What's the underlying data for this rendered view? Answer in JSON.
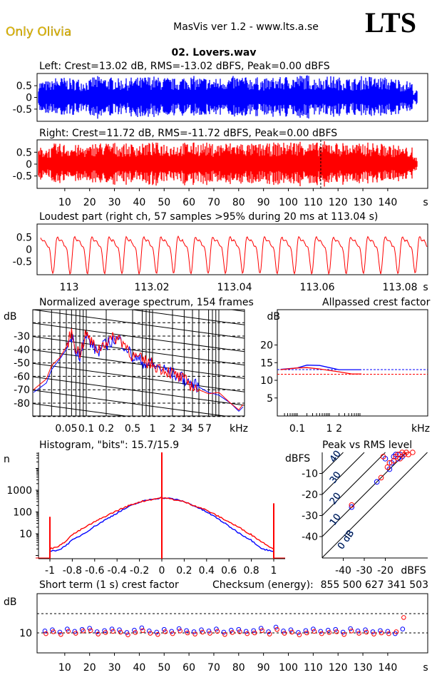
{
  "header": {
    "artist": "Only Olivia",
    "app": "MasVis ver 1.2 - www.lts.a.se",
    "logo": "LTS",
    "file": "02. Lovers.wav"
  },
  "colors": {
    "left": "#0000ff",
    "right": "#ff0000",
    "artist": "#e8c000"
  },
  "chart_data": [
    {
      "type": "line",
      "name": "left-waveform",
      "title": "Left: Crest=13.02 dB, RMS=-13.02 dBFS, Peak=0.00 dBFS",
      "ylim": [
        -1,
        1
      ],
      "yticks": [
        "0.5",
        "0",
        "-0.5"
      ],
      "xlim": [
        0,
        155
      ],
      "envelope": [
        0.7,
        0.85,
        0.8,
        0.75,
        0.9,
        0.85,
        0.8,
        0.85,
        0.9,
        0.85,
        0.8,
        0.9,
        0.85,
        0.8,
        0.85,
        0.9,
        0.85,
        0.8,
        0.85,
        0.9,
        0.95,
        0.85,
        0.9,
        0.85,
        0.8,
        0.9,
        0.85,
        0.8,
        0.7,
        0.3
      ]
    },
    {
      "type": "line",
      "name": "right-waveform",
      "title": "Right: Crest=11.72 dB, RMS=-11.72 dBFS, Peak=0.00 dBFS",
      "ylim": [
        -1,
        1
      ],
      "yticks": [
        "0.5",
        "0",
        "-0.5"
      ],
      "xlim": [
        0,
        155
      ],
      "marker_s": 113.04,
      "envelope": [
        0.7,
        0.85,
        0.8,
        0.75,
        0.9,
        0.9,
        0.85,
        0.85,
        0.9,
        0.9,
        0.85,
        0.9,
        0.9,
        0.85,
        0.9,
        0.9,
        0.85,
        0.85,
        0.9,
        0.95,
        1.0,
        0.9,
        0.95,
        0.9,
        0.85,
        0.9,
        0.85,
        0.8,
        0.7,
        0.3
      ],
      "xticks": [
        "10",
        "20",
        "30",
        "40",
        "50",
        "60",
        "70",
        "80",
        "90",
        "100",
        "110",
        "120",
        "130",
        "140"
      ],
      "xunit": "s"
    },
    {
      "type": "line",
      "name": "loudest-part",
      "title": "Loudest part (right ch, 57 samples >95% during 20 ms at 113.04 s)",
      "ylim": [
        -1,
        1
      ],
      "yticks": [
        "0.5",
        "0",
        "-0.5"
      ],
      "xticks": [
        "113",
        "113.02",
        "113.04",
        "113.06",
        "113.08"
      ],
      "xunit": "s"
    },
    {
      "type": "line",
      "name": "spectrum",
      "title": "Normalized average spectrum, 154 frames",
      "ylabel": "dB",
      "xunit": "kHz",
      "xscale": "log",
      "yticks": [
        "-30",
        "-40",
        "-50",
        "-60",
        "-70",
        "-80"
      ],
      "xticks": [
        "0.05",
        "0.1",
        "0.2",
        "0.5",
        "1",
        "2",
        "3",
        "4",
        "5",
        "7"
      ],
      "freq_khz": [
        0.016,
        0.025,
        0.03,
        0.04,
        0.05,
        0.06,
        0.065,
        0.07,
        0.08,
        0.1,
        0.12,
        0.15,
        0.2,
        0.25,
        0.3,
        0.4,
        0.5,
        0.7,
        1,
        1.5,
        2,
        3,
        4,
        5,
        7,
        10,
        15,
        20,
        24
      ],
      "series": [
        {
          "values": [
            -72,
            -65,
            -55,
            -47,
            -40,
            -30,
            -35,
            -40,
            -44,
            -30,
            -36,
            -42,
            -36,
            -33,
            -32,
            -38,
            -46,
            -49,
            -52,
            -55,
            -58,
            -62,
            -66,
            -68,
            -72,
            -74,
            -80,
            -86,
            -82
          ]
        },
        {
          "values": [
            -70,
            -62,
            -52,
            -46,
            -38,
            -27,
            -33,
            -39,
            -43,
            -28,
            -35,
            -40,
            -34,
            -32,
            -31,
            -37,
            -45,
            -48,
            -51,
            -55,
            -58,
            -63,
            -67,
            -70,
            -73,
            -72,
            -80,
            -85,
            -80
          ]
        }
      ]
    },
    {
      "type": "line",
      "name": "allpassed-crest",
      "title": "Allpassed crest factor",
      "ylabel": "dB",
      "xunit": "kHz",
      "xscale": "log",
      "yticks": [
        "20",
        "15",
        "10",
        "5"
      ],
      "xticks": [
        "0.1",
        "1",
        "2"
      ],
      "freq_khz": [
        0.03,
        0.1,
        0.2,
        0.5,
        1,
        2,
        5,
        10
      ],
      "series": [
        {
          "values": [
            13.1,
            13.5,
            14.3,
            14.2,
            13.6,
            13.0,
            13.0,
            13.0
          ],
          "reference": 13.02
        },
        {
          "values": [
            13.0,
            13.5,
            13.6,
            13.2,
            12.8,
            12.4,
            11.8,
            11.8
          ],
          "reference": 11.72
        }
      ]
    },
    {
      "type": "line",
      "name": "histogram",
      "title": "Histogram, \"bits\": 15.7/15.9",
      "ylabel": "n",
      "yscale": "log",
      "yticks": [
        "1000",
        "100",
        "10"
      ],
      "xticks": [
        "-1",
        "-0.8",
        "-0.6",
        "-0.4",
        "-0.2",
        "0",
        "0.2",
        "0.4",
        "0.6",
        "0.8",
        "1"
      ],
      "x": [
        -1,
        -0.9,
        -0.8,
        -0.7,
        -0.6,
        -0.5,
        -0.4,
        -0.3,
        -0.2,
        -0.1,
        0,
        0.1,
        0.2,
        0.3,
        0.4,
        0.5,
        0.6,
        0.7,
        0.8,
        0.9,
        1
      ],
      "series": [
        {
          "values": [
            1.5,
            2,
            5,
            10,
            22,
            45,
            90,
            170,
            280,
            380,
            450,
            400,
            300,
            180,
            100,
            50,
            22,
            10,
            5,
            2,
            1.5
          ]
        },
        {
          "values": [
            2,
            3,
            9,
            18,
            35,
            65,
            115,
            190,
            290,
            370,
            450,
            380,
            290,
            190,
            120,
            65,
            35,
            18,
            9,
            4,
            2
          ]
        }
      ],
      "spikes": [
        {
          "x": -1,
          "n": 60
        },
        {
          "x": 0,
          "n": 60000
        },
        {
          "x": 1,
          "n": 250
        }
      ]
    },
    {
      "type": "scatter",
      "name": "peak-vs-rms",
      "title": "Peak vs RMS level",
      "ylabel": "dBFS",
      "xlabel": "dBFS",
      "xlim": [
        -50,
        0
      ],
      "ylim": [
        -50,
        0
      ],
      "yticks": [
        "-10",
        "-20",
        "-30",
        "-40"
      ],
      "xticks": [
        "-40",
        "-30",
        "-20"
      ],
      "crest_lines": [
        "0 dB",
        "10",
        "20",
        "30",
        "40"
      ],
      "series": [
        {
          "points": [
            [
              -36,
              -26
            ],
            [
              -24,
              -14
            ],
            [
              -18,
              -8
            ],
            [
              -20,
              -3
            ],
            [
              -17,
              -5
            ],
            [
              -16,
              -2
            ],
            [
              -15,
              -1
            ],
            [
              -14,
              -3
            ],
            [
              -13,
              -1
            ],
            [
              -12,
              -2
            ]
          ]
        },
        {
          "points": [
            [
              -36,
              -25
            ],
            [
              -22,
              -12
            ],
            [
              -21,
              -2
            ],
            [
              -19,
              -7
            ],
            [
              -18,
              -5
            ],
            [
              -16,
              -4
            ],
            [
              -15,
              -2
            ],
            [
              -14,
              -1
            ],
            [
              -13,
              -3
            ],
            [
              -12,
              0
            ],
            [
              -11,
              -1
            ],
            [
              -10,
              0
            ],
            [
              -9,
              -1
            ],
            [
              -7,
              0
            ]
          ]
        }
      ]
    },
    {
      "type": "scatter",
      "name": "short-term-crest",
      "title": "Short term (1 s) crest factor",
      "ylabel": "dB",
      "yticks": [
        "10"
      ],
      "xunit": "s",
      "xticks": [
        "10",
        "20",
        "30",
        "40",
        "50",
        "60",
        "70",
        "80",
        "90",
        "100",
        "110",
        "120",
        "130",
        "140"
      ],
      "checksum_label": "Checksum (energy):",
      "checksum": "855 500 627 341 503",
      "t": [
        2,
        5,
        8,
        11,
        14,
        17,
        20,
        23,
        26,
        29,
        32,
        35,
        38,
        41,
        44,
        47,
        50,
        53,
        56,
        59,
        62,
        65,
        68,
        71,
        74,
        77,
        80,
        83,
        86,
        89,
        92,
        95,
        98,
        101,
        104,
        107,
        110,
        113,
        116,
        119,
        122,
        125,
        128,
        131,
        134,
        137,
        140,
        143,
        146
      ],
      "series": [
        {
          "values": [
            10.5,
            10.8,
            10.2,
            11,
            10.4,
            10.9,
            11.2,
            10.3,
            10.6,
            11,
            10.8,
            10.1,
            10.7,
            11.3,
            10.5,
            10.2,
            10.9,
            10.4,
            11.1,
            10.6,
            10.3,
            10.8,
            10.5,
            11,
            10.2,
            10.7,
            10.9,
            10.4,
            10.6,
            11.2,
            10.3,
            11.5,
            10.5,
            10.8,
            10.1,
            10.6,
            11,
            10.4,
            10.7,
            10.9,
            10.2,
            11.1,
            10.5,
            10.8,
            10.3,
            10.6,
            10.4,
            9.8,
            11
          ]
        },
        {
          "values": [
            9.8,
            10.3,
            9.6,
            10.4,
            9.9,
            10.5,
            10.6,
            9.7,
            10.1,
            10.4,
            10.2,
            9.5,
            10.1,
            10.6,
            9.9,
            9.6,
            10.3,
            9.8,
            10.5,
            10,
            9.7,
            10.2,
            9.9,
            10.4,
            9.6,
            10.1,
            10.3,
            9.8,
            10,
            10.6,
            9.7,
            10.9,
            9.9,
            10.2,
            9.5,
            10,
            10.4,
            9.8,
            10.1,
            10.3,
            9.6,
            10.5,
            9.9,
            10.2,
            9.7,
            10,
            9.8,
            10.3,
            14
          ]
        }
      ]
    }
  ]
}
